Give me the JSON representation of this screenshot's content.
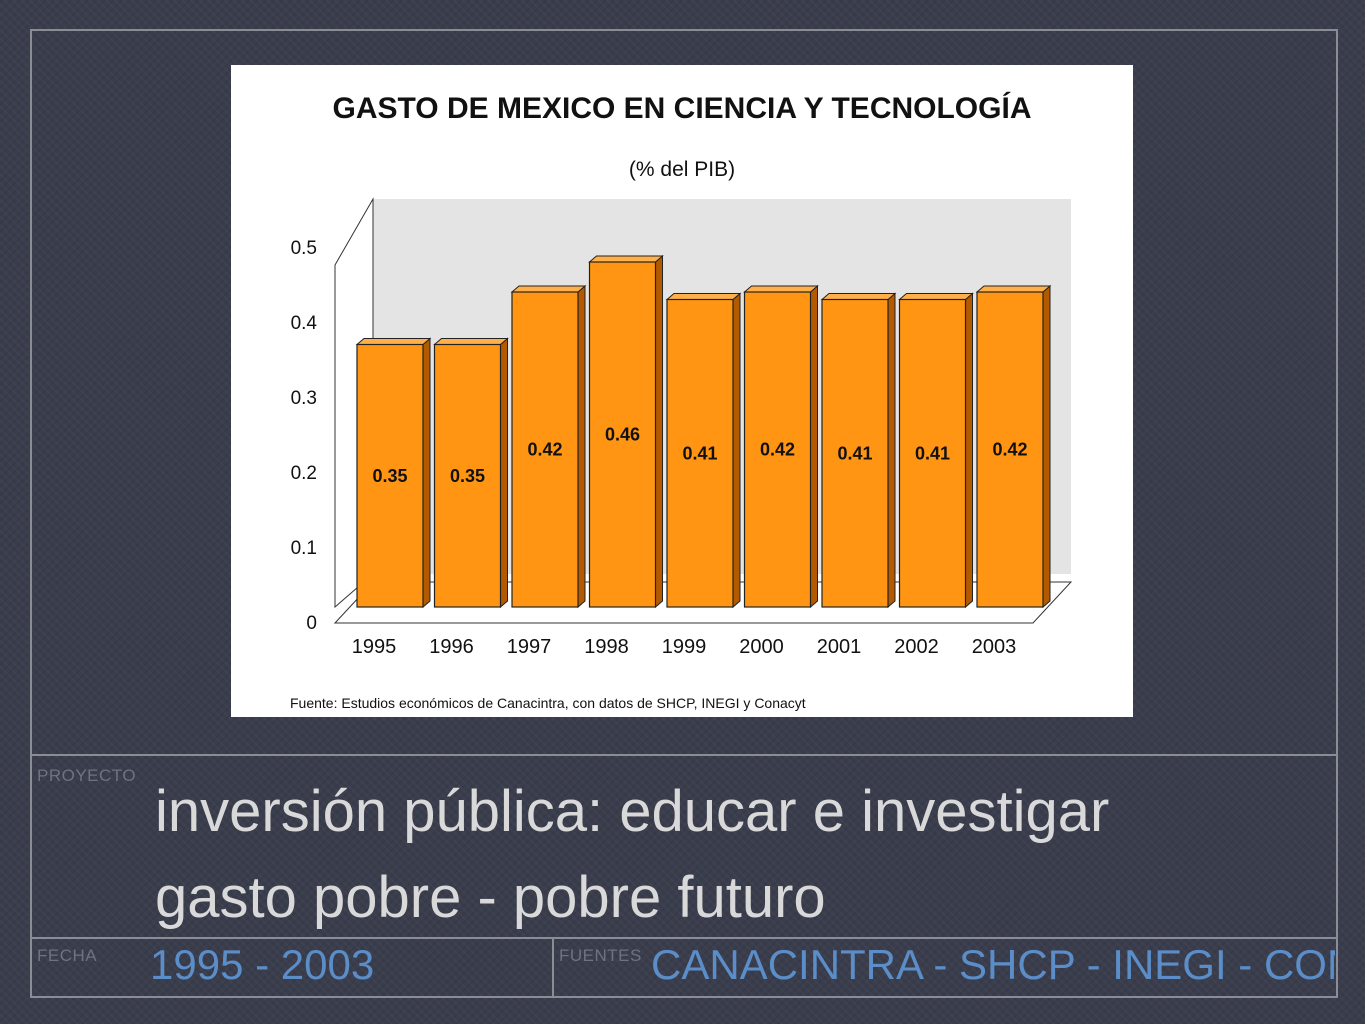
{
  "labels": {
    "proyecto": "PROYECTO",
    "fecha": "FECHA",
    "fuentes": "FUENTES"
  },
  "project": {
    "line1": "inversión pública: educar e investigar",
    "line2": "gasto pobre - pobre futuro"
  },
  "date_range": "1995 - 2003",
  "sources": "CANACINTRA - SHCP - INEGI - CONACYT",
  "colors": {
    "bar_front": "#ff9512",
    "bar_top": "#ffb04a",
    "bar_side": "#b35a00",
    "plot_wall": "#e4e4e4",
    "floor": "#ffffff",
    "text_blue": "#5b8ec9"
  },
  "chart_data": {
    "type": "bar",
    "title": "GASTO DE MEXICO EN CIENCIA Y TECNOLOGÍA",
    "subtitle": "(% del PIB)",
    "source_note": "Fuente: Estudios económicos de Canacintra, con datos de SHCP, INEGI y Conacyt",
    "categories": [
      "1995",
      "1996",
      "1997",
      "1998",
      "1999",
      "2000",
      "2001",
      "2002",
      "2003"
    ],
    "values": [
      0.35,
      0.35,
      0.42,
      0.46,
      0.41,
      0.42,
      0.41,
      0.41,
      0.42
    ],
    "data_labels": [
      "0.35",
      "0.35",
      "0.42",
      "0.46",
      "0.41",
      "0.42",
      "0.41",
      "0.41",
      "0.42"
    ],
    "y_ticks": [
      "0",
      "0.1",
      "0.2",
      "0.3",
      "0.4",
      "0.5"
    ],
    "ylim": [
      0,
      0.5
    ],
    "grid": false,
    "style": "3d"
  }
}
